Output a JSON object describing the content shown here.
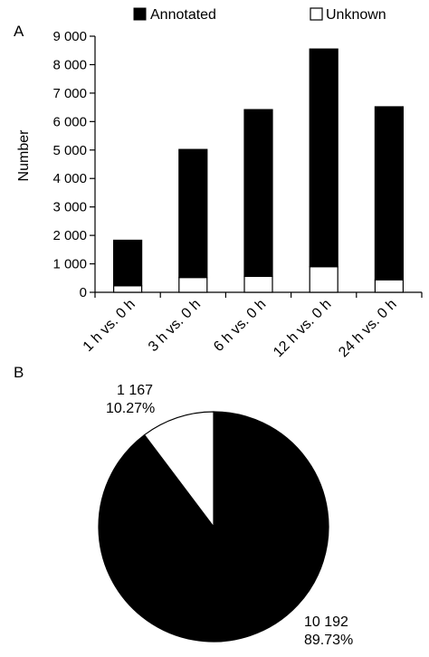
{
  "panels": {
    "a_label": "A",
    "b_label": "B"
  },
  "colors": {
    "annotated": "#000000",
    "unknown": "#ffffff",
    "axis": "#000000"
  },
  "chart_data": [
    {
      "type": "bar",
      "stacked": true,
      "panel": "A",
      "title": "",
      "xlabel": "",
      "ylabel": "Number",
      "ylim": [
        0,
        9000
      ],
      "yticks": [
        0,
        1000,
        2000,
        3000,
        4000,
        5000,
        6000,
        7000,
        8000,
        9000
      ],
      "ytick_labels": [
        "0",
        "1 000",
        "2 000",
        "3 000",
        "4 000",
        "5 000",
        "6 000",
        "7 000",
        "8 000",
        "9 000"
      ],
      "grid": false,
      "legend_position": "top",
      "categories": [
        "1 h vs. 0 h",
        "3 h vs. 0 h",
        "6 h vs. 0 h",
        "12 h vs. 0 h",
        "24 h vs. 0 h"
      ],
      "series": [
        {
          "name": "Unknown",
          "values": [
            230,
            520,
            560,
            900,
            440
          ]
        },
        {
          "name": "Annotated",
          "values": [
            1600,
            4500,
            5860,
            7650,
            6080
          ]
        }
      ]
    },
    {
      "type": "pie",
      "panel": "B",
      "title": "",
      "slices": [
        {
          "value": 10192,
          "label": "10 192",
          "percent": "89.73%"
        },
        {
          "value": 1167,
          "label": "1 167",
          "percent": "10.27%"
        }
      ]
    }
  ]
}
